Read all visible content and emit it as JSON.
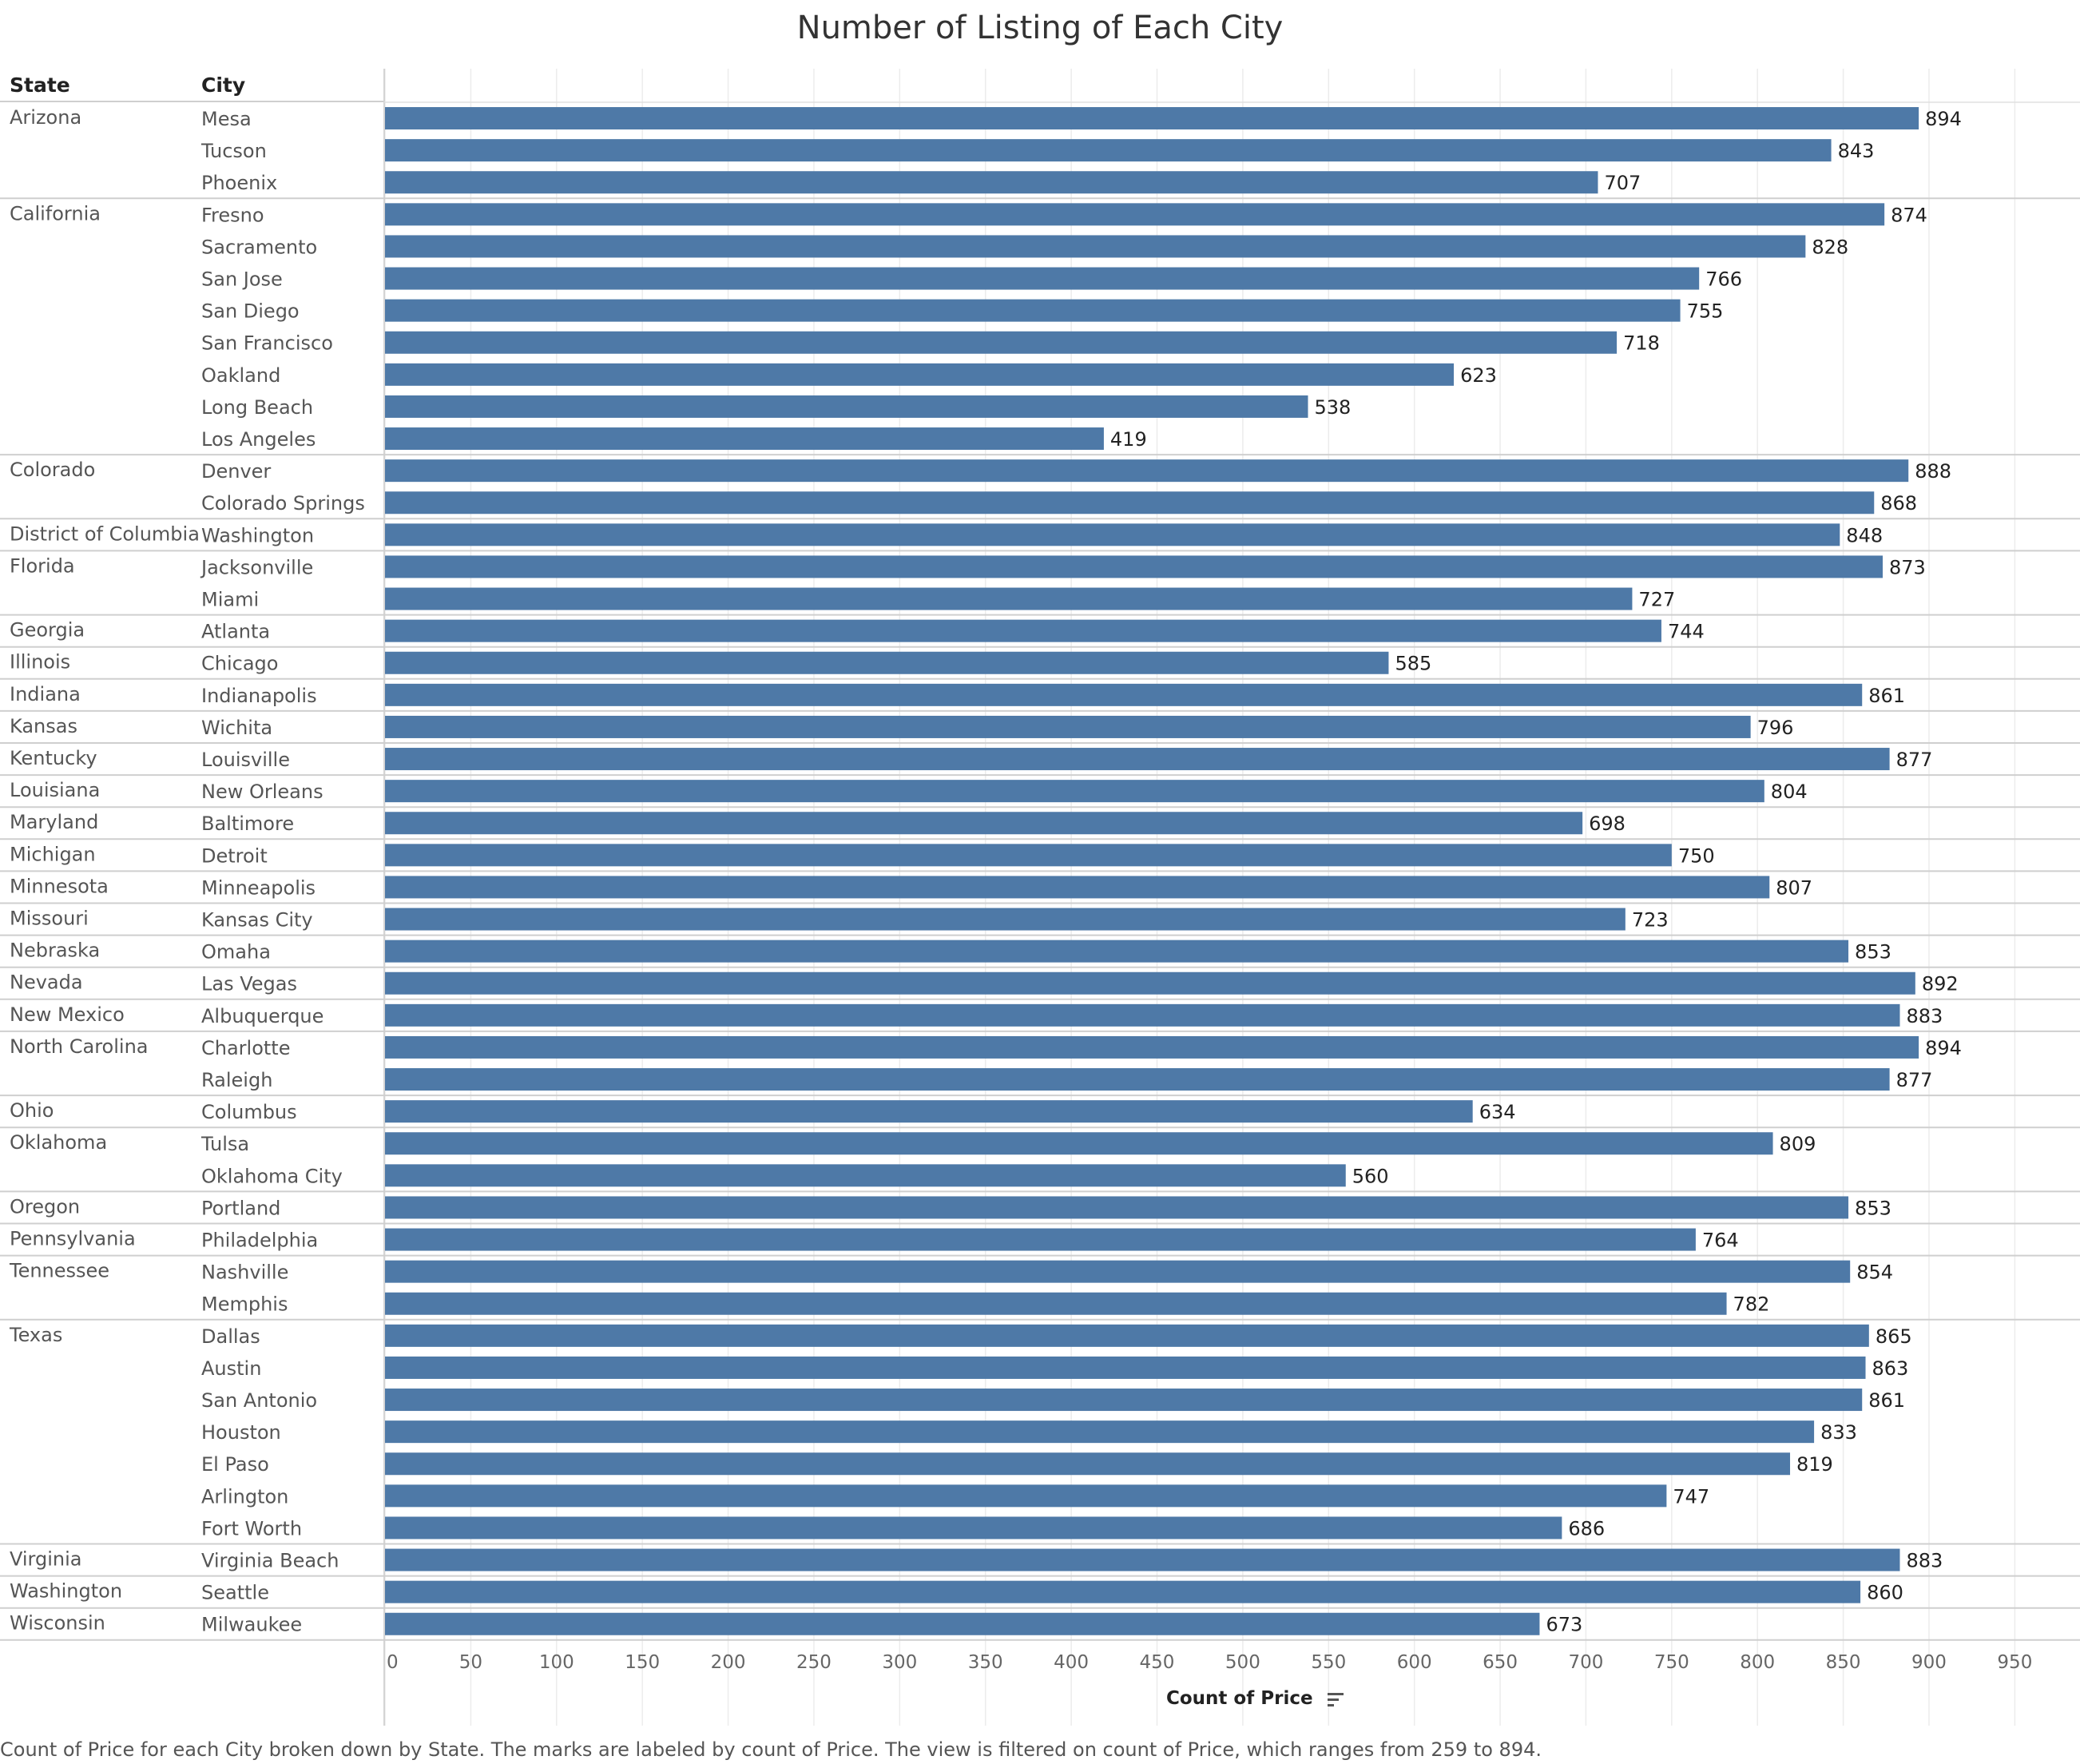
{
  "header": {
    "state_col": "State",
    "city_col": "City"
  },
  "chart_data": {
    "type": "bar",
    "title": "Number of Listing of Each City",
    "xlabel": "Count of Price",
    "caption": "Count of Price for each City broken down by State.  The marks are labeled by count of Price. The view is filtered on count of Price, which ranges from 259 to 894.",
    "xlim": [
      0,
      950
    ],
    "ticks": [
      0,
      50,
      100,
      150,
      200,
      250,
      300,
      350,
      400,
      450,
      500,
      550,
      600,
      650,
      700,
      750,
      800,
      850,
      900,
      950
    ],
    "bar_color": "#4e79a7",
    "grid": true,
    "groups": [
      {
        "state": "Arizona",
        "rows": [
          {
            "city": "Mesa",
            "value": 894
          },
          {
            "city": "Tucson",
            "value": 843
          },
          {
            "city": "Phoenix",
            "value": 707
          }
        ]
      },
      {
        "state": "California",
        "rows": [
          {
            "city": "Fresno",
            "value": 874
          },
          {
            "city": "Sacramento",
            "value": 828
          },
          {
            "city": "San Jose",
            "value": 766
          },
          {
            "city": "San Diego",
            "value": 755
          },
          {
            "city": "San Francisco",
            "value": 718
          },
          {
            "city": "Oakland",
            "value": 623
          },
          {
            "city": "Long Beach",
            "value": 538
          },
          {
            "city": "Los Angeles",
            "value": 419
          }
        ]
      },
      {
        "state": "Colorado",
        "rows": [
          {
            "city": "Denver",
            "value": 888
          },
          {
            "city": "Colorado Springs",
            "value": 868
          }
        ]
      },
      {
        "state": "District of Columbia",
        "rows": [
          {
            "city": "Washington",
            "value": 848
          }
        ]
      },
      {
        "state": "Florida",
        "rows": [
          {
            "city": "Jacksonville",
            "value": 873
          },
          {
            "city": "Miami",
            "value": 727
          }
        ]
      },
      {
        "state": "Georgia",
        "rows": [
          {
            "city": "Atlanta",
            "value": 744
          }
        ]
      },
      {
        "state": "Illinois",
        "rows": [
          {
            "city": "Chicago",
            "value": 585
          }
        ]
      },
      {
        "state": "Indiana",
        "rows": [
          {
            "city": "Indianapolis",
            "value": 861
          }
        ]
      },
      {
        "state": "Kansas",
        "rows": [
          {
            "city": "Wichita",
            "value": 796
          }
        ]
      },
      {
        "state": "Kentucky",
        "rows": [
          {
            "city": "Louisville",
            "value": 877
          }
        ]
      },
      {
        "state": "Louisiana",
        "rows": [
          {
            "city": "New Orleans",
            "value": 804
          }
        ]
      },
      {
        "state": "Maryland",
        "rows": [
          {
            "city": "Baltimore",
            "value": 698
          }
        ]
      },
      {
        "state": "Michigan",
        "rows": [
          {
            "city": "Detroit",
            "value": 750
          }
        ]
      },
      {
        "state": "Minnesota",
        "rows": [
          {
            "city": "Minneapolis",
            "value": 807
          }
        ]
      },
      {
        "state": "Missouri",
        "rows": [
          {
            "city": "Kansas City",
            "value": 723
          }
        ]
      },
      {
        "state": "Nebraska",
        "rows": [
          {
            "city": "Omaha",
            "value": 853
          }
        ]
      },
      {
        "state": "Nevada",
        "rows": [
          {
            "city": "Las Vegas",
            "value": 892
          }
        ]
      },
      {
        "state": "New Mexico",
        "rows": [
          {
            "city": "Albuquerque",
            "value": 883
          }
        ]
      },
      {
        "state": "North Carolina",
        "rows": [
          {
            "city": "Charlotte",
            "value": 894
          },
          {
            "city": "Raleigh",
            "value": 877
          }
        ]
      },
      {
        "state": "Ohio",
        "rows": [
          {
            "city": "Columbus",
            "value": 634
          }
        ]
      },
      {
        "state": "Oklahoma",
        "rows": [
          {
            "city": "Tulsa",
            "value": 809
          },
          {
            "city": "Oklahoma City",
            "value": 560
          }
        ]
      },
      {
        "state": "Oregon",
        "rows": [
          {
            "city": "Portland",
            "value": 853
          }
        ]
      },
      {
        "state": "Pennsylvania",
        "rows": [
          {
            "city": "Philadelphia",
            "value": 764
          }
        ]
      },
      {
        "state": "Tennessee",
        "rows": [
          {
            "city": "Nashville",
            "value": 854
          },
          {
            "city": "Memphis",
            "value": 782
          }
        ]
      },
      {
        "state": "Texas",
        "rows": [
          {
            "city": "Dallas",
            "value": 865
          },
          {
            "city": "Austin",
            "value": 863
          },
          {
            "city": "San Antonio",
            "value": 861
          },
          {
            "city": "Houston",
            "value": 833
          },
          {
            "city": "El Paso",
            "value": 819
          },
          {
            "city": "Arlington",
            "value": 747
          },
          {
            "city": "Fort Worth",
            "value": 686
          }
        ]
      },
      {
        "state": "Virginia",
        "rows": [
          {
            "city": "Virginia Beach",
            "value": 883
          }
        ]
      },
      {
        "state": "Washington",
        "rows": [
          {
            "city": "Seattle",
            "value": 860
          }
        ]
      },
      {
        "state": "Wisconsin",
        "rows": [
          {
            "city": "Milwaukee",
            "value": 673
          }
        ]
      }
    ]
  }
}
